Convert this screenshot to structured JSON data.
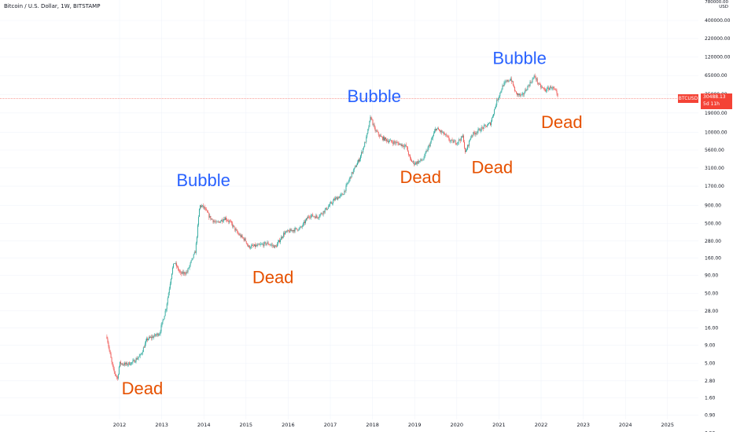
{
  "header": {
    "title": "Bitcoin / U.S. Dollar, 1W, BITSTAMP"
  },
  "price_scale": {
    "currency": "USD",
    "top_tick": "780000.00"
  },
  "last_price": {
    "symbol": "BTCUSD",
    "value": "30488.13",
    "countdown": "5d 11h"
  },
  "colors": {
    "up": "#26a69a",
    "down": "#ef5350",
    "bubble": "#2962ff",
    "dead": "#e65100",
    "grid": "#f0f3fa",
    "price_line": "#f44336"
  },
  "chart_data": {
    "type": "candlestick",
    "title": "Bitcoin / U.S. Dollar, 1W, BITSTAMP",
    "scale": "log",
    "x_ticks": [
      "2012",
      "2013",
      "2014",
      "2015",
      "2016",
      "2017",
      "2018",
      "2019",
      "2020",
      "2021",
      "2022",
      "2023",
      "2024",
      "2025"
    ],
    "y_ticks": [
      "400000.00",
      "220000.00",
      "120000.00",
      "65000.00",
      "35000.00",
      "19000.00",
      "10000.00",
      "5600.00",
      "3100.00",
      "1700.00",
      "900.00",
      "500.00",
      "280.00",
      "160.00",
      "90.00",
      "50.00",
      "28.00",
      "16.00",
      "9.00",
      "5.00",
      "2.80",
      "1.60",
      "0.90",
      "0.50"
    ],
    "price_path": [
      [
        2011.7,
        12
      ],
      [
        2011.75,
        8
      ],
      [
        2011.85,
        4
      ],
      [
        2011.95,
        3
      ],
      [
        2012.0,
        5
      ],
      [
        2012.15,
        4.8
      ],
      [
        2012.3,
        5.1
      ],
      [
        2012.5,
        6.5
      ],
      [
        2012.65,
        11
      ],
      [
        2012.8,
        12
      ],
      [
        2012.95,
        13.5
      ],
      [
        2013.1,
        30
      ],
      [
        2013.25,
        110
      ],
      [
        2013.3,
        140
      ],
      [
        2013.45,
        95
      ],
      [
        2013.6,
        100
      ],
      [
        2013.8,
        200
      ],
      [
        2013.9,
        900
      ],
      [
        2014.0,
        850
      ],
      [
        2014.15,
        600
      ],
      [
        2014.3,
        500
      ],
      [
        2014.5,
        600
      ],
      [
        2014.65,
        500
      ],
      [
        2014.8,
        360
      ],
      [
        2015.0,
        280
      ],
      [
        2015.05,
        230
      ],
      [
        2015.3,
        240
      ],
      [
        2015.5,
        260
      ],
      [
        2015.7,
        230
      ],
      [
        2015.9,
        360
      ],
      [
        2016.1,
        400
      ],
      [
        2016.3,
        430
      ],
      [
        2016.5,
        650
      ],
      [
        2016.7,
        620
      ],
      [
        2016.9,
        800
      ],
      [
        2017.1,
        1100
      ],
      [
        2017.3,
        1300
      ],
      [
        2017.5,
        2500
      ],
      [
        2017.7,
        4300
      ],
      [
        2017.85,
        8000
      ],
      [
        2017.96,
        17000
      ],
      [
        2018.05,
        11000
      ],
      [
        2018.2,
        8500
      ],
      [
        2018.4,
        7500
      ],
      [
        2018.6,
        7000
      ],
      [
        2018.8,
        6300
      ],
      [
        2018.9,
        4000
      ],
      [
        2019.0,
        3600
      ],
      [
        2019.2,
        4100
      ],
      [
        2019.4,
        7800
      ],
      [
        2019.5,
        11500
      ],
      [
        2019.7,
        9500
      ],
      [
        2019.85,
        7500
      ],
      [
        2020.0,
        7200
      ],
      [
        2020.15,
        8800
      ],
      [
        2020.2,
        5000
      ],
      [
        2020.35,
        9200
      ],
      [
        2020.6,
        11500
      ],
      [
        2020.8,
        13500
      ],
      [
        2020.95,
        28000
      ],
      [
        2021.1,
        48000
      ],
      [
        2021.28,
        59000
      ],
      [
        2021.4,
        36000
      ],
      [
        2021.55,
        33000
      ],
      [
        2021.7,
        47000
      ],
      [
        2021.85,
        64000
      ],
      [
        2021.95,
        47000
      ],
      [
        2022.1,
        40000
      ],
      [
        2022.25,
        45000
      ],
      [
        2022.35,
        38000
      ],
      [
        2022.4,
        30488
      ]
    ]
  },
  "annotations": [
    {
      "text": "Dead",
      "kind": "dead",
      "x": 2012.05,
      "y": 1.8
    },
    {
      "text": "Bubble",
      "kind": "bubble",
      "x": 2013.35,
      "y": 1700
    },
    {
      "text": "Dead",
      "kind": "dead",
      "x": 2015.15,
      "y": 70
    },
    {
      "text": "Bubble",
      "kind": "bubble",
      "x": 2017.4,
      "y": 27000
    },
    {
      "text": "Dead",
      "kind": "dead",
      "x": 2018.65,
      "y": 1900
    },
    {
      "text": "Dead",
      "kind": "dead",
      "x": 2020.35,
      "y": 2600
    },
    {
      "text": "Bubble",
      "kind": "bubble",
      "x": 2020.85,
      "y": 95000
    },
    {
      "text": "Dead",
      "kind": "dead",
      "x": 2022.0,
      "y": 11500
    }
  ]
}
